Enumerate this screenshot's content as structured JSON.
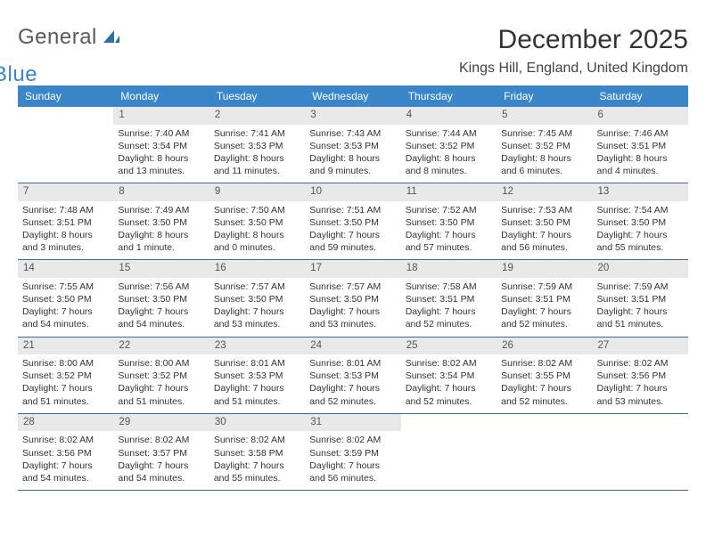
{
  "logo": {
    "text1": "General",
    "text2": "Blue"
  },
  "title": "December 2025",
  "location": "Kings Hill, England, United Kingdom",
  "colors": {
    "header_bg": "#3a86c8",
    "header_text": "#ffffff",
    "daynum_bg": "#e9e9e9",
    "daynum_text": "#555555",
    "rule": "#3a6a9a",
    "body_text": "#333333",
    "logo_gray": "#5a5a5a",
    "logo_blue": "#3a86c8"
  },
  "fonts": {
    "title_size_pt": 22,
    "location_size_pt": 12,
    "weekday_size_pt": 9,
    "daynum_size_pt": 9,
    "body_size_pt": 8
  },
  "weekdays": [
    "Sunday",
    "Monday",
    "Tuesday",
    "Wednesday",
    "Thursday",
    "Friday",
    "Saturday"
  ],
  "weeks": [
    [
      {
        "empty": true
      },
      {
        "num": "1",
        "sunrise": "Sunrise: 7:40 AM",
        "sunset": "Sunset: 3:54 PM",
        "daylight": "Daylight: 8 hours and 13 minutes."
      },
      {
        "num": "2",
        "sunrise": "Sunrise: 7:41 AM",
        "sunset": "Sunset: 3:53 PM",
        "daylight": "Daylight: 8 hours and 11 minutes."
      },
      {
        "num": "3",
        "sunrise": "Sunrise: 7:43 AM",
        "sunset": "Sunset: 3:53 PM",
        "daylight": "Daylight: 8 hours and 9 minutes."
      },
      {
        "num": "4",
        "sunrise": "Sunrise: 7:44 AM",
        "sunset": "Sunset: 3:52 PM",
        "daylight": "Daylight: 8 hours and 8 minutes."
      },
      {
        "num": "5",
        "sunrise": "Sunrise: 7:45 AM",
        "sunset": "Sunset: 3:52 PM",
        "daylight": "Daylight: 8 hours and 6 minutes."
      },
      {
        "num": "6",
        "sunrise": "Sunrise: 7:46 AM",
        "sunset": "Sunset: 3:51 PM",
        "daylight": "Daylight: 8 hours and 4 minutes."
      }
    ],
    [
      {
        "num": "7",
        "sunrise": "Sunrise: 7:48 AM",
        "sunset": "Sunset: 3:51 PM",
        "daylight": "Daylight: 8 hours and 3 minutes."
      },
      {
        "num": "8",
        "sunrise": "Sunrise: 7:49 AM",
        "sunset": "Sunset: 3:50 PM",
        "daylight": "Daylight: 8 hours and 1 minute."
      },
      {
        "num": "9",
        "sunrise": "Sunrise: 7:50 AM",
        "sunset": "Sunset: 3:50 PM",
        "daylight": "Daylight: 8 hours and 0 minutes."
      },
      {
        "num": "10",
        "sunrise": "Sunrise: 7:51 AM",
        "sunset": "Sunset: 3:50 PM",
        "daylight": "Daylight: 7 hours and 59 minutes."
      },
      {
        "num": "11",
        "sunrise": "Sunrise: 7:52 AM",
        "sunset": "Sunset: 3:50 PM",
        "daylight": "Daylight: 7 hours and 57 minutes."
      },
      {
        "num": "12",
        "sunrise": "Sunrise: 7:53 AM",
        "sunset": "Sunset: 3:50 PM",
        "daylight": "Daylight: 7 hours and 56 minutes."
      },
      {
        "num": "13",
        "sunrise": "Sunrise: 7:54 AM",
        "sunset": "Sunset: 3:50 PM",
        "daylight": "Daylight: 7 hours and 55 minutes."
      }
    ],
    [
      {
        "num": "14",
        "sunrise": "Sunrise: 7:55 AM",
        "sunset": "Sunset: 3:50 PM",
        "daylight": "Daylight: 7 hours and 54 minutes."
      },
      {
        "num": "15",
        "sunrise": "Sunrise: 7:56 AM",
        "sunset": "Sunset: 3:50 PM",
        "daylight": "Daylight: 7 hours and 54 minutes."
      },
      {
        "num": "16",
        "sunrise": "Sunrise: 7:57 AM",
        "sunset": "Sunset: 3:50 PM",
        "daylight": "Daylight: 7 hours and 53 minutes."
      },
      {
        "num": "17",
        "sunrise": "Sunrise: 7:57 AM",
        "sunset": "Sunset: 3:50 PM",
        "daylight": "Daylight: 7 hours and 53 minutes."
      },
      {
        "num": "18",
        "sunrise": "Sunrise: 7:58 AM",
        "sunset": "Sunset: 3:51 PM",
        "daylight": "Daylight: 7 hours and 52 minutes."
      },
      {
        "num": "19",
        "sunrise": "Sunrise: 7:59 AM",
        "sunset": "Sunset: 3:51 PM",
        "daylight": "Daylight: 7 hours and 52 minutes."
      },
      {
        "num": "20",
        "sunrise": "Sunrise: 7:59 AM",
        "sunset": "Sunset: 3:51 PM",
        "daylight": "Daylight: 7 hours and 51 minutes."
      }
    ],
    [
      {
        "num": "21",
        "sunrise": "Sunrise: 8:00 AM",
        "sunset": "Sunset: 3:52 PM",
        "daylight": "Daylight: 7 hours and 51 minutes."
      },
      {
        "num": "22",
        "sunrise": "Sunrise: 8:00 AM",
        "sunset": "Sunset: 3:52 PM",
        "daylight": "Daylight: 7 hours and 51 minutes."
      },
      {
        "num": "23",
        "sunrise": "Sunrise: 8:01 AM",
        "sunset": "Sunset: 3:53 PM",
        "daylight": "Daylight: 7 hours and 51 minutes."
      },
      {
        "num": "24",
        "sunrise": "Sunrise: 8:01 AM",
        "sunset": "Sunset: 3:53 PM",
        "daylight": "Daylight: 7 hours and 52 minutes."
      },
      {
        "num": "25",
        "sunrise": "Sunrise: 8:02 AM",
        "sunset": "Sunset: 3:54 PM",
        "daylight": "Daylight: 7 hours and 52 minutes."
      },
      {
        "num": "26",
        "sunrise": "Sunrise: 8:02 AM",
        "sunset": "Sunset: 3:55 PM",
        "daylight": "Daylight: 7 hours and 52 minutes."
      },
      {
        "num": "27",
        "sunrise": "Sunrise: 8:02 AM",
        "sunset": "Sunset: 3:56 PM",
        "daylight": "Daylight: 7 hours and 53 minutes."
      }
    ],
    [
      {
        "num": "28",
        "sunrise": "Sunrise: 8:02 AM",
        "sunset": "Sunset: 3:56 PM",
        "daylight": "Daylight: 7 hours and 54 minutes."
      },
      {
        "num": "29",
        "sunrise": "Sunrise: 8:02 AM",
        "sunset": "Sunset: 3:57 PM",
        "daylight": "Daylight: 7 hours and 54 minutes."
      },
      {
        "num": "30",
        "sunrise": "Sunrise: 8:02 AM",
        "sunset": "Sunset: 3:58 PM",
        "daylight": "Daylight: 7 hours and 55 minutes."
      },
      {
        "num": "31",
        "sunrise": "Sunrise: 8:02 AM",
        "sunset": "Sunset: 3:59 PM",
        "daylight": "Daylight: 7 hours and 56 minutes."
      },
      {
        "empty": true
      },
      {
        "empty": true
      },
      {
        "empty": true
      }
    ]
  ]
}
